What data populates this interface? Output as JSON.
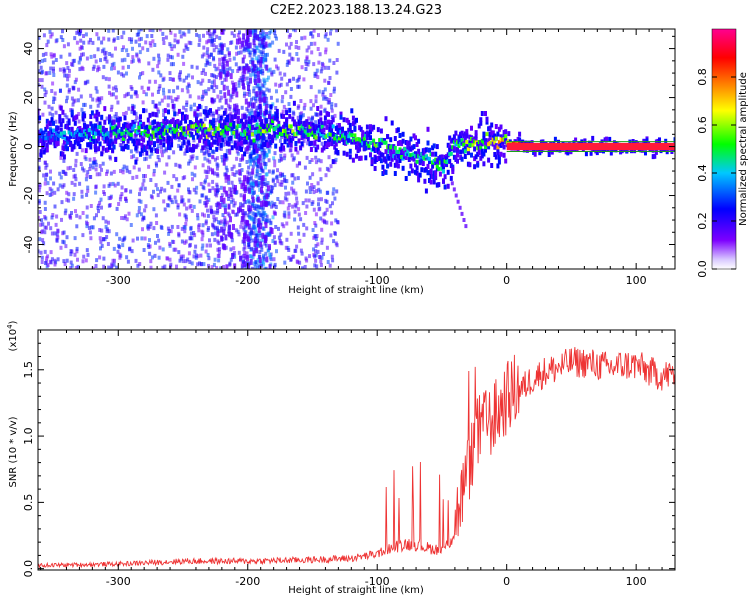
{
  "figure": {
    "title": "C2E2.2023.188.13.24.G23"
  },
  "chart_data": [
    {
      "type": "heatmap",
      "title": "C2E2.2023.188.13.24.G23",
      "xlabel": "Height of straight line (km)",
      "ylabel": "Frequency (Hz)",
      "xlim": [
        -362,
        130
      ],
      "ylim": [
        -50,
        48
      ],
      "xticks": [
        -300,
        -200,
        -100,
        0,
        100
      ],
      "yticks": [
        -40,
        -20,
        0,
        20,
        40
      ],
      "grid": false,
      "ridge": {
        "description": "Main spectral ridge: frequency center and normalized amplitude vs height",
        "x": [
          -360,
          -320,
          -280,
          -240,
          -200,
          -180,
          -150,
          -120,
          -100,
          -80,
          -60,
          -50,
          -45,
          -40,
          -30,
          -20,
          -10,
          0,
          20,
          60,
          100,
          128
        ],
        "freq_center": [
          5,
          5,
          6,
          7,
          6,
          7,
          6,
          4,
          0,
          -3,
          -6,
          -8,
          -6,
          0,
          1,
          1,
          2,
          2,
          0,
          0,
          0,
          0
        ],
        "amplitude": [
          0.35,
          0.45,
          0.5,
          0.6,
          0.55,
          0.6,
          0.55,
          0.5,
          0.55,
          0.5,
          0.45,
          0.55,
          0.45,
          0.5,
          0.6,
          0.65,
          0.7,
          0.75,
          0.92,
          0.95,
          0.95,
          0.95
        ]
      },
      "colorbar": {
        "label": "Normalized spectral amplitude",
        "range": [
          0.0,
          1.0
        ],
        "ticks": [
          "0.0",
          "0.2",
          "0.4",
          "0.6",
          "0.8"
        ],
        "colors": [
          "#ffffff",
          "#7d00ff",
          "#0000ff",
          "#00c8ff",
          "#00ff00",
          "#ffff00",
          "#ff8000",
          "#ff0000",
          "#ff0090"
        ]
      }
    },
    {
      "type": "line",
      "xlabel": "Height of straight line (km)",
      "ylabel": "SNR (10 * v/v)",
      "yscale_label": "(x10",
      "yscale_exp": "4",
      "yscale_close": ")",
      "xlim": [
        -362,
        130
      ],
      "ylim": [
        -0.01,
        1.8
      ],
      "xticks": [
        -300,
        -200,
        -100,
        0,
        100
      ],
      "yticks": [
        0.0,
        0.5,
        1.0,
        1.5
      ],
      "ytick_labels": [
        "0.0",
        "0.5",
        "1.0",
        "1.5"
      ],
      "grid": false,
      "series": [
        {
          "name": "SNR",
          "color": "#ee3333",
          "x": [
            -362,
            -300,
            -250,
            -200,
            -150,
            -120,
            -100,
            -90,
            -80,
            -70,
            -60,
            -50,
            -45,
            -40,
            -35,
            -30,
            -25,
            -20,
            -15,
            -10,
            -5,
            0,
            10,
            20,
            30,
            40,
            50,
            60,
            70,
            80,
            90,
            100,
            110,
            120,
            130
          ],
          "y": [
            0.02,
            0.03,
            0.05,
            0.05,
            0.06,
            0.07,
            0.1,
            0.14,
            0.17,
            0.17,
            0.14,
            0.13,
            0.17,
            0.27,
            0.45,
            0.65,
            0.85,
            0.98,
            1.0,
            1.05,
            1.12,
            1.2,
            1.3,
            1.4,
            1.45,
            1.48,
            1.52,
            1.52,
            1.5,
            1.48,
            1.5,
            1.5,
            1.45,
            1.42,
            1.43
          ]
        }
      ]
    }
  ]
}
